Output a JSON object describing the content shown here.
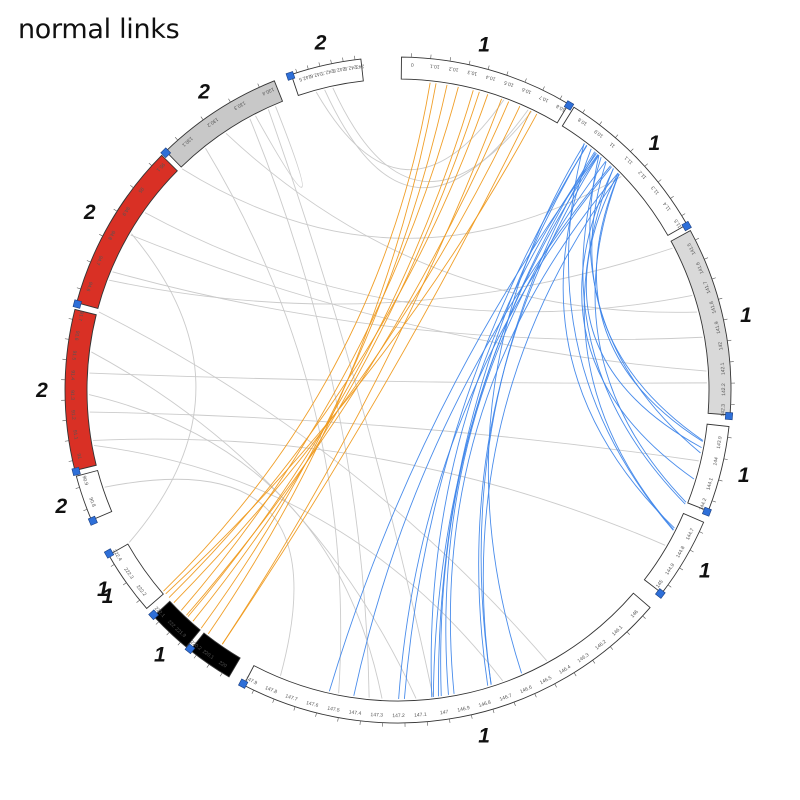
{
  "title": "normal links",
  "colors": {
    "background": "#ffffff",
    "segment_outline": "#333333",
    "band_marker": "#2e6fd8",
    "link_gray": "#c8c8c8",
    "link_orange": "#ef9a1d",
    "link_blue": "#3f86ea"
  },
  "segments": [
    {
      "chrom": "1",
      "fill": "#ffffff",
      "ticks": [
        "0",
        "10.1",
        "10.2",
        "10.3",
        "10.4",
        "10.5",
        "10.6",
        "10.7",
        "10.8"
      ]
    },
    {
      "chrom": "1",
      "fill": "#ffffff",
      "ticks": [
        "10.8",
        "10.9",
        "11",
        "11.1",
        "11.2",
        "11.3",
        "11.4",
        "11.5"
      ]
    },
    {
      "chrom": "1",
      "fill": "#d9d9d9",
      "ticks": [
        "141.5",
        "141.6",
        "141.7",
        "141.8",
        "141.9",
        "142",
        "142.1",
        "142.2",
        "142.3"
      ]
    },
    {
      "chrom": "1",
      "fill": "#ffffff",
      "ticks": [
        "143.9",
        "144",
        "144.1",
        "144.2"
      ]
    },
    {
      "chrom": "1",
      "fill": "#ffffff",
      "ticks": [
        "144.7",
        "144.8",
        "144.9",
        "145"
      ]
    },
    {
      "chrom": "1",
      "fill": "#ffffff",
      "ticks": [
        "146",
        "146.1",
        "146.2",
        "146.3",
        "146.4",
        "146.5",
        "146.6",
        "146.7",
        "146.8",
        "146.9",
        "147",
        "147.1",
        "147.2",
        "147.3",
        "147.4",
        "147.5",
        "147.6",
        "147.7",
        "147.8",
        "147.9"
      ]
    },
    {
      "chrom": "1",
      "fill": "#000000",
      "ticks": [
        "220",
        "220.1",
        "220.2"
      ]
    },
    {
      "chrom": "1",
      "fill": "#000000",
      "ticks": [
        "221.9",
        "222",
        "222.1"
      ]
    },
    {
      "chrom": "1",
      "fill": "#ffffff",
      "ticks": [
        "222.2",
        "222.3",
        "222.4"
      ]
    },
    {
      "chrom": "2",
      "fill": "#ffffff",
      "ticks": [
        "90.8",
        "90.9"
      ]
    },
    {
      "chrom": "2",
      "fill": "#d93025",
      "ticks": [
        "91",
        "91.1",
        "91.2",
        "91.3",
        "91.4",
        "91.5",
        "91.6",
        "91.7"
      ]
    },
    {
      "chrom": "2",
      "fill": "#d93025",
      "ticks": [
        "94.6",
        "94.7",
        "94.8",
        "94.9",
        "95",
        "95.1"
      ]
    },
    {
      "chrom": "2",
      "fill": "#c8c8c8",
      "ticks": [
        "130.1",
        "130.2",
        "130.3",
        "130.4"
      ]
    },
    {
      "chrom": "2",
      "fill": "#ffffff",
      "ticks": [
        "242.5",
        "242.6",
        "242.7",
        "242.8",
        "242.9",
        "243"
      ]
    }
  ],
  "link_groups": [
    {
      "color": "orange",
      "count": 12
    },
    {
      "color": "blue",
      "count": 24
    },
    {
      "color": "gray",
      "count": 22
    }
  ]
}
